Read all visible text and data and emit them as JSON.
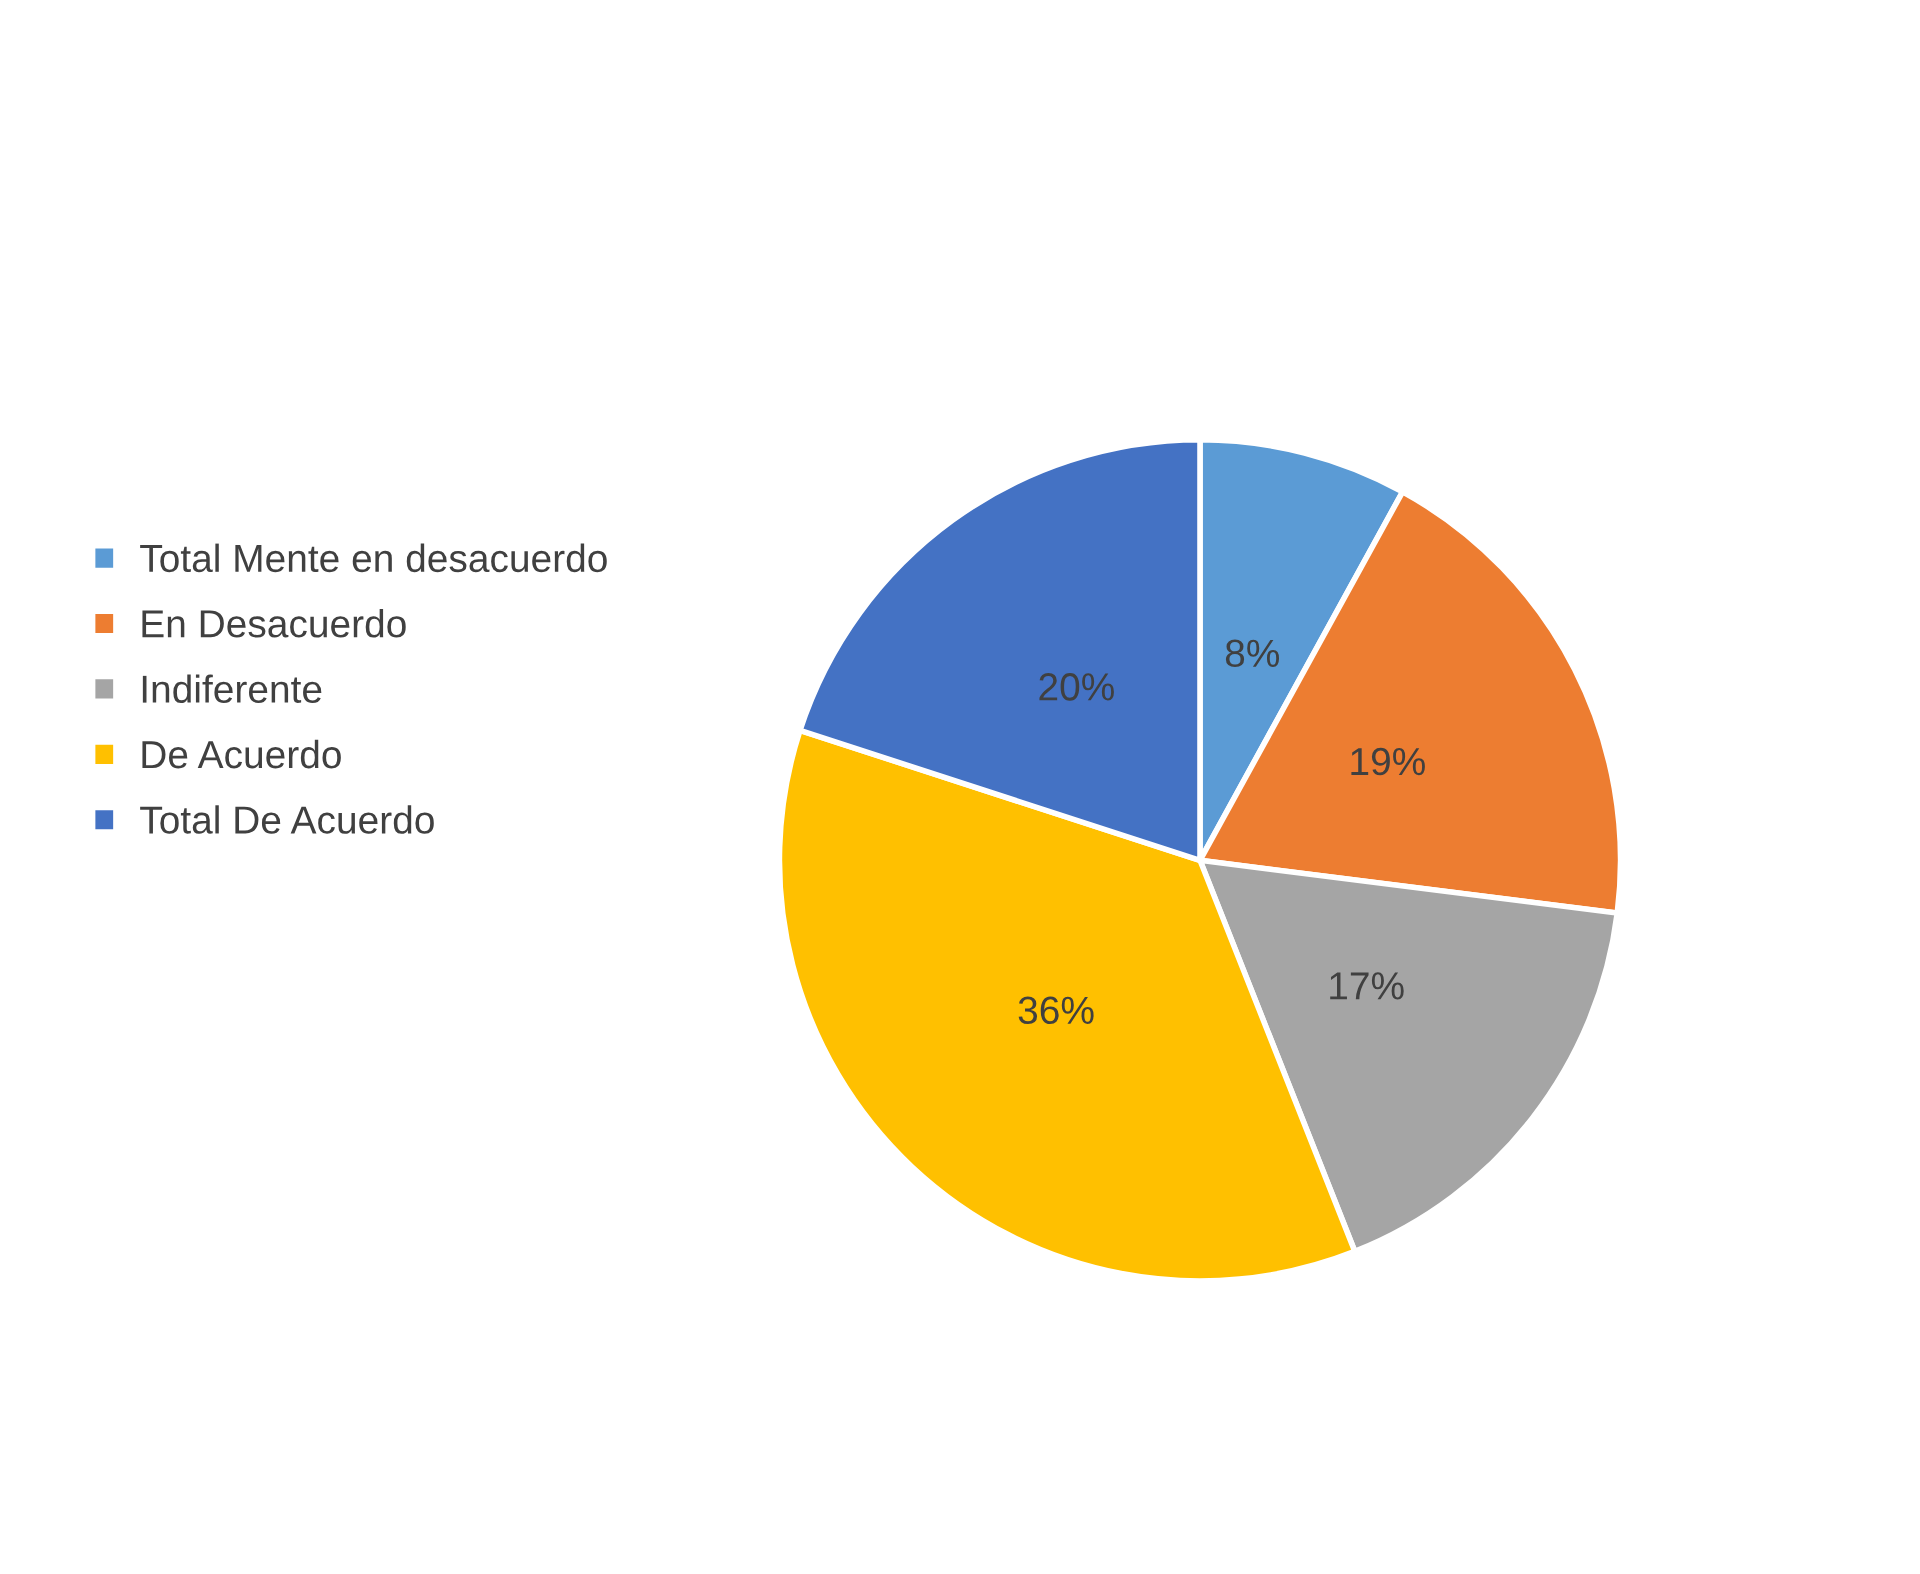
{
  "chart_data": {
    "type": "pie",
    "categories": [
      "Total Mente en desacuerdo",
      "En Desacuerdo",
      "Indiferente",
      "De Acuerdo",
      "Total De Acuerdo"
    ],
    "values": [
      8,
      19,
      17,
      36,
      20
    ],
    "value_labels": [
      "8%",
      "19%",
      "17%",
      "36%",
      "20%"
    ],
    "colors": [
      "#5b9bd5",
      "#ed7d31",
      "#a5a5a5",
      "#ffc000",
      "#4472c4"
    ],
    "legend": "left"
  }
}
